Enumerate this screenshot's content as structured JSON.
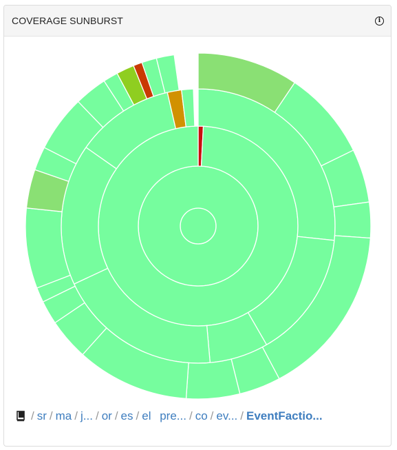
{
  "panel": {
    "title": "COVERAGE SUNBURST",
    "info_icon": "info-circle-icon"
  },
  "colors": {
    "covered": "#76fd9e",
    "high": "#8ae074",
    "medium": "#8fce20",
    "low": "#d19101",
    "poor": "#c93a03",
    "none": "#c90f0f",
    "separator": "#ffffff"
  },
  "sunburst": {
    "rings": [
      [
        {
          "start": 0,
          "end": 360,
          "color": "covered"
        }
      ],
      [
        {
          "start": 0,
          "end": 360,
          "color": "covered"
        }
      ],
      [
        {
          "start": 0,
          "end": 3,
          "color": "none"
        },
        {
          "start": 3,
          "end": 360,
          "color": "covered"
        }
      ],
      [
        {
          "start": 0,
          "end": 96,
          "color": "covered"
        },
        {
          "start": 96,
          "end": 150,
          "color": "covered"
        },
        {
          "start": 150,
          "end": 175,
          "color": "covered"
        },
        {
          "start": 175,
          "end": 245,
          "color": "covered"
        },
        {
          "start": 245,
          "end": 305,
          "color": "covered"
        },
        {
          "start": 305,
          "end": 347,
          "color": "covered"
        },
        {
          "start": 347,
          "end": 353,
          "color": "low"
        },
        {
          "start": 353,
          "end": 358,
          "color": "covered"
        }
      ],
      [
        {
          "start": 0,
          "end": 34,
          "color": "high"
        },
        {
          "start": 34,
          "end": 64,
          "color": "covered"
        },
        {
          "start": 64,
          "end": 82,
          "color": "covered"
        },
        {
          "start": 82,
          "end": 94,
          "color": "covered"
        },
        {
          "start": 94,
          "end": 152,
          "color": "covered"
        },
        {
          "start": 152,
          "end": 166,
          "color": "covered"
        },
        {
          "start": 166,
          "end": 184,
          "color": "covered"
        },
        {
          "start": 184,
          "end": 222,
          "color": "covered"
        },
        {
          "start": 222,
          "end": 236,
          "color": "covered"
        },
        {
          "start": 236,
          "end": 244,
          "color": "covered"
        },
        {
          "start": 244,
          "end": 249,
          "color": "covered"
        },
        {
          "start": 249,
          "end": 276,
          "color": "covered"
        },
        {
          "start": 276,
          "end": 289,
          "color": "high"
        },
        {
          "start": 289,
          "end": 297,
          "color": "covered"
        },
        {
          "start": 297,
          "end": 316,
          "color": "covered"
        },
        {
          "start": 316,
          "end": 327,
          "color": "covered"
        },
        {
          "start": 327,
          "end": 332,
          "color": "covered"
        },
        {
          "start": 332,
          "end": 338,
          "color": "medium"
        },
        {
          "start": 338,
          "end": 341,
          "color": "poor"
        },
        {
          "start": 341,
          "end": 346,
          "color": "covered"
        },
        {
          "start": 346,
          "end": 352,
          "color": "covered"
        }
      ]
    ]
  },
  "breadcrumb": {
    "home_icon": "book-icon",
    "items": [
      "sr",
      "ma",
      "j...",
      "or",
      "es",
      "el",
      "pre...",
      "co",
      "ev..."
    ],
    "current": "EventFactio..."
  }
}
